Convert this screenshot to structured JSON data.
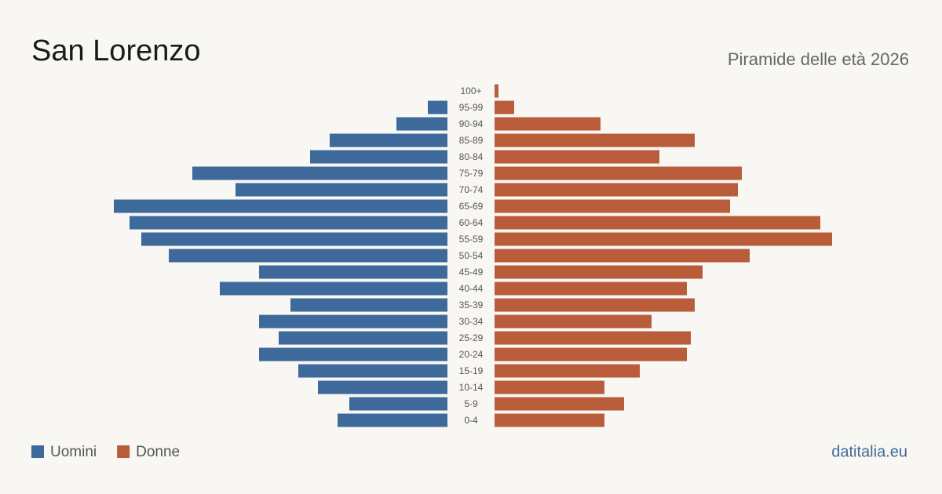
{
  "chart_data": {
    "type": "pyramid",
    "title": "San Lorenzo",
    "subtitle": "Piramide delle età 2026",
    "source": "datitalia.eu",
    "categories": [
      "100+",
      "95-99",
      "90-94",
      "85-89",
      "80-84",
      "75-79",
      "70-74",
      "65-69",
      "60-64",
      "55-59",
      "50-54",
      "45-49",
      "40-44",
      "35-39",
      "30-34",
      "25-29",
      "20-24",
      "15-19",
      "10-14",
      "5-9",
      "0-4"
    ],
    "series": [
      {
        "name": "Uomini",
        "color": "#3d6a9a",
        "values": [
          0,
          5,
          13,
          30,
          35,
          65,
          54,
          85,
          81,
          78,
          71,
          48,
          58,
          40,
          48,
          43,
          48,
          38,
          33,
          25,
          28
        ]
      },
      {
        "name": "Donne",
        "color": "#b85c3a",
        "values": [
          1,
          5,
          27,
          51,
          42,
          63,
          62,
          60,
          83,
          86,
          65,
          53,
          49,
          51,
          40,
          50,
          49,
          37,
          28,
          33,
          28
        ]
      }
    ]
  }
}
